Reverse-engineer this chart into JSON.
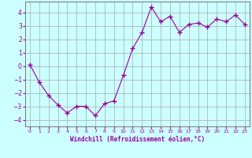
{
  "x": [
    0,
    1,
    2,
    3,
    4,
    5,
    6,
    7,
    8,
    9,
    10,
    11,
    12,
    13,
    14,
    15,
    16,
    17,
    18,
    19,
    20,
    21,
    22,
    23
  ],
  "y": [
    0.1,
    -1.2,
    -2.2,
    -2.9,
    -3.5,
    -3.0,
    -3.0,
    -3.7,
    -2.8,
    -2.6,
    -0.7,
    1.3,
    2.5,
    4.4,
    3.3,
    3.7,
    2.5,
    3.1,
    3.2,
    2.9,
    3.5,
    3.3,
    3.8,
    3.1
  ],
  "line_color": "#990099",
  "marker": "+",
  "bg_color": "#ccffff",
  "grid_color": "#aaaaaa",
  "xlabel": "Windchill (Refroidissement éolien,°C)",
  "xlabel_color": "#990099",
  "yticks": [
    -4,
    -3,
    -2,
    -1,
    0,
    1,
    2,
    3,
    4
  ],
  "xtick_labels": [
    "0",
    "1",
    "2",
    "3",
    "4",
    "5",
    "6",
    "7",
    "8",
    "9",
    "10",
    "11",
    "12",
    "13",
    "14",
    "15",
    "16",
    "17",
    "18",
    "19",
    "20",
    "21",
    "22",
    "23"
  ],
  "ylim": [
    -4.5,
    4.8
  ],
  "xlim": [
    -0.5,
    23.5
  ],
  "tick_color": "#990099",
  "axis_spine_color": "#777777"
}
